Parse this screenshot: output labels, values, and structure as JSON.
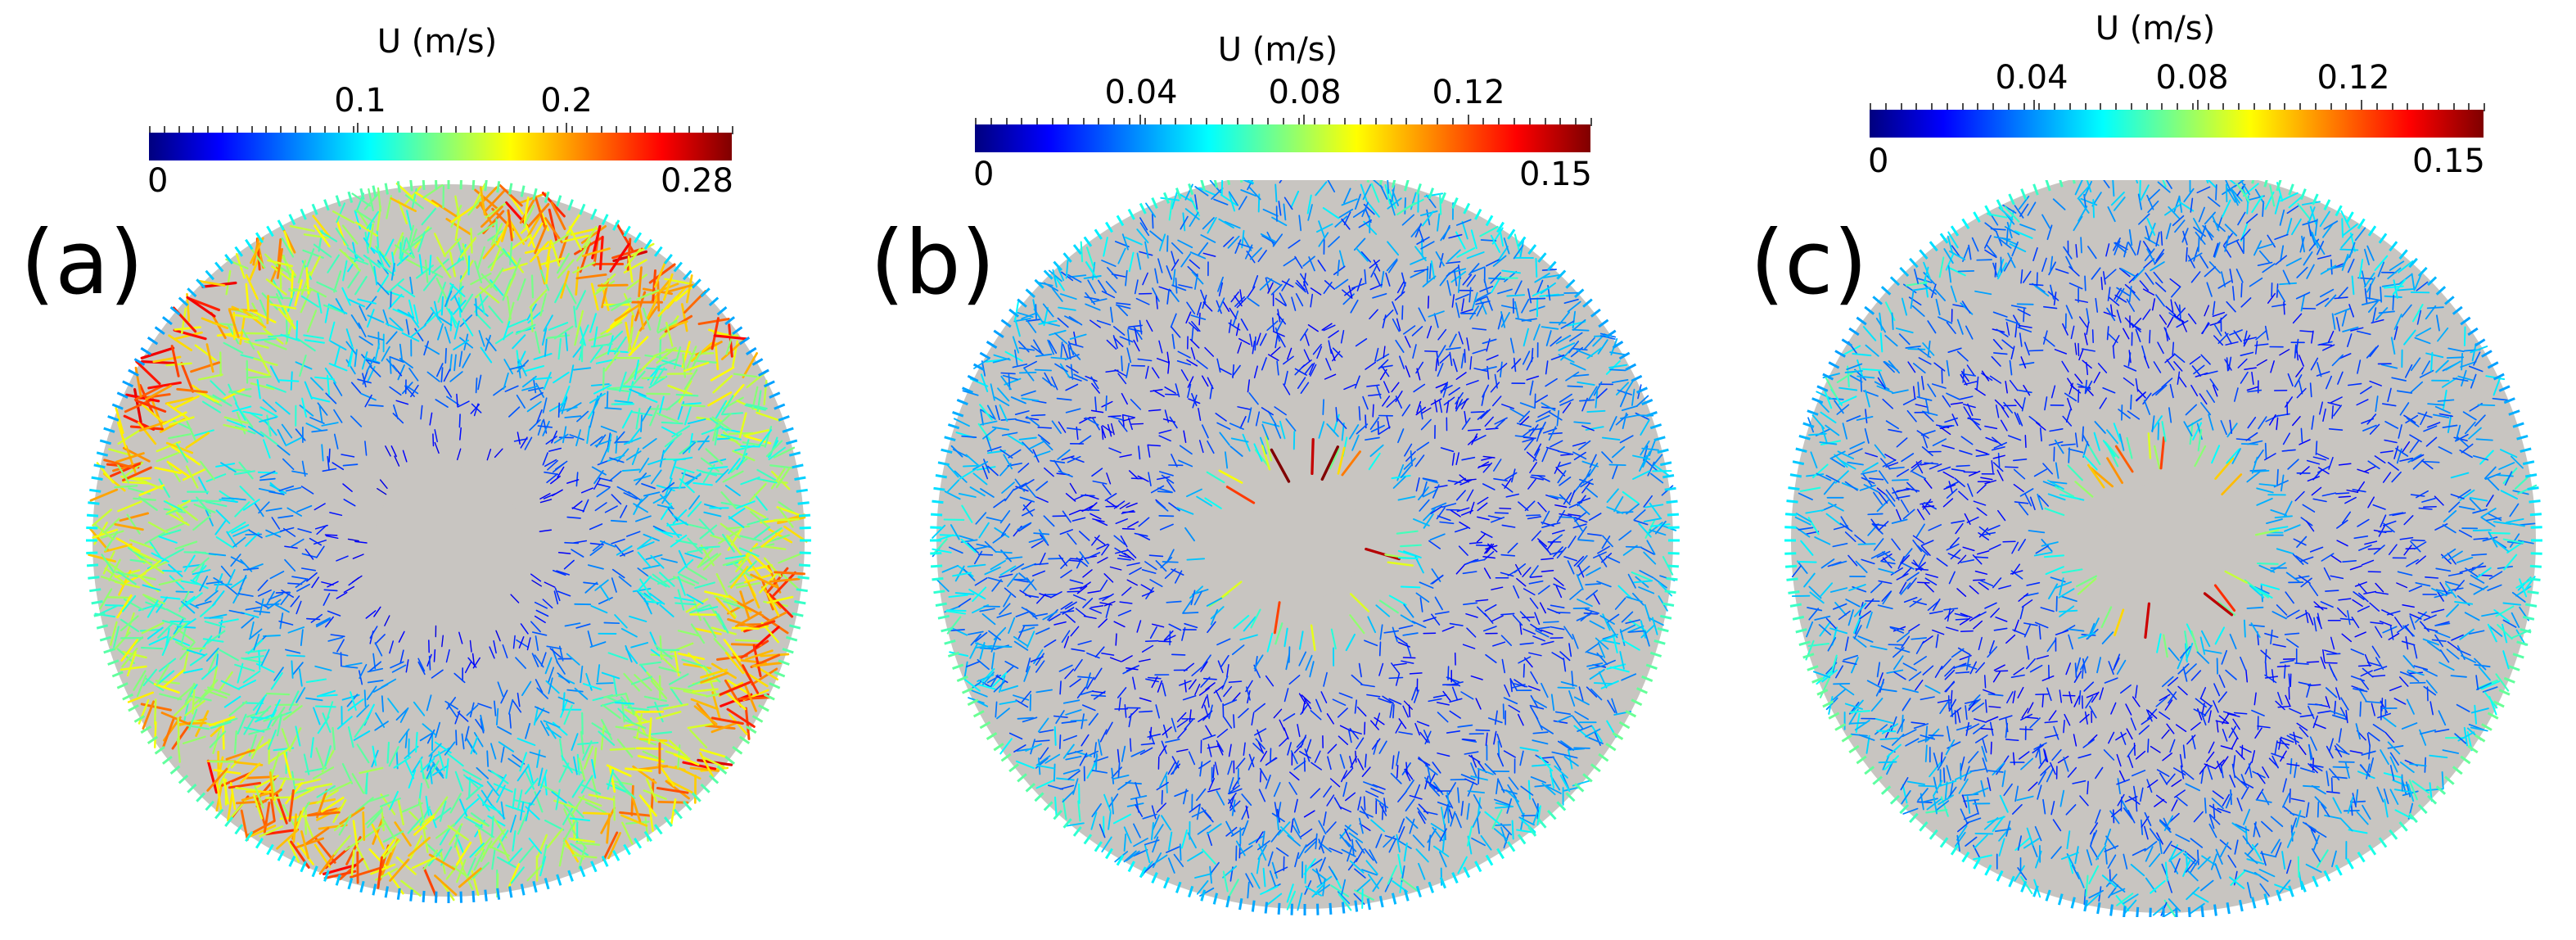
{
  "panels": [
    {
      "label": "(a)",
      "colorbar": {
        "title": "U (m/s)",
        "min_label": "0",
        "max_label": "0.28",
        "ticks": [
          {
            "value": 0.1,
            "label": "0.1"
          },
          {
            "value": 0.2,
            "label": "0.2"
          }
        ],
        "range": [
          0,
          0.28
        ]
      }
    },
    {
      "label": "(b)",
      "colorbar": {
        "title": "U (m/s)",
        "min_label": "0",
        "max_label": "0.15",
        "ticks": [
          {
            "value": 0.04,
            "label": "0.04"
          },
          {
            "value": 0.08,
            "label": "0.08"
          },
          {
            "value": 0.12,
            "label": "0.12"
          }
        ],
        "range": [
          0,
          0.15
        ]
      }
    },
    {
      "label": "(c)",
      "colorbar": {
        "title": "U (m/s)",
        "min_label": "0",
        "max_label": "0.15",
        "ticks": [
          {
            "value": 0.04,
            "label": "0.04"
          },
          {
            "value": 0.08,
            "label": "0.08"
          },
          {
            "value": 0.12,
            "label": "0.12"
          }
        ],
        "range": [
          0,
          0.15
        ]
      }
    }
  ],
  "colors": {
    "domain_fill": "#c8c5c1",
    "colormap": "jet"
  }
}
